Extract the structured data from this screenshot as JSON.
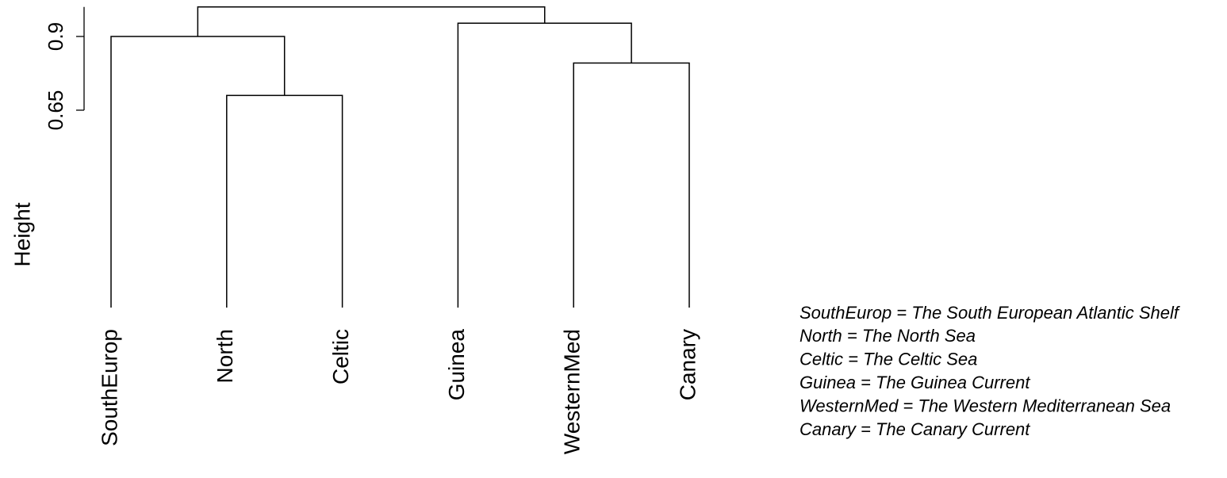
{
  "chart_data": {
    "type": "dendrogram",
    "y_label": "Height",
    "ylim": [
      0.65,
      1.0
    ],
    "yticks": [
      0.65,
      0.9
    ],
    "color": "#000000",
    "leaves": [
      "SouthEurop",
      "North",
      "Celtic",
      "Guinea",
      "WesternMed",
      "Canary"
    ],
    "merges": [
      {
        "children": [
          1,
          2
        ],
        "height": 0.7
      },
      {
        "children": [
          4,
          5
        ],
        "height": 0.81
      },
      {
        "children": [
          0,
          6
        ],
        "height": 0.9
      },
      {
        "children": [
          3,
          7
        ],
        "height": 0.945
      },
      {
        "children": [
          8,
          9
        ],
        "height": 1.0
      }
    ],
    "legend": [
      "SouthEurop = The South European Atlantic Shelf",
      "North = The North Sea",
      "Celtic = The Celtic Sea",
      "Guinea = The Guinea Current",
      "WesternMed = The Western Mediterranean Sea",
      "Canary = The Canary Current"
    ]
  }
}
